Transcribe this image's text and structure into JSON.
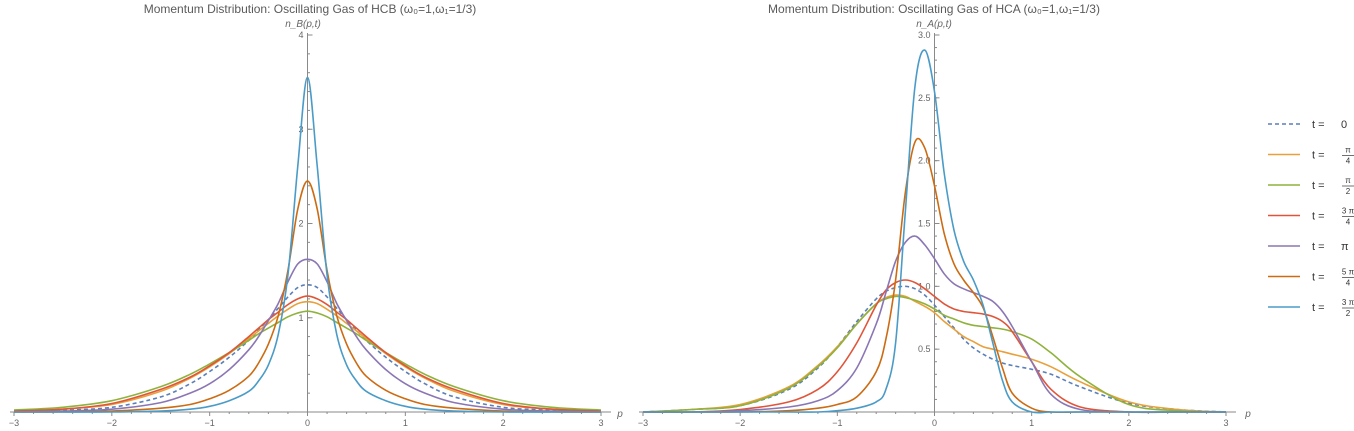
{
  "chart_data": [
    {
      "type": "line",
      "title": "Momentum Distribution: Oscillating Gas of HCB (ω₀=1,ω₁=1/3)",
      "xlabel": "p",
      "ylabel": "n_B(p,t)",
      "xlim": [
        -3,
        3
      ],
      "ylim": [
        0,
        4
      ],
      "xticks": [
        "-3",
        "-2",
        "-1",
        "0",
        "1",
        "2",
        "3"
      ],
      "yticks": [
        "1",
        "2",
        "3",
        "4"
      ],
      "yticks_values": [
        1,
        2,
        3,
        4
      ],
      "grid": false,
      "x": [
        -3,
        -2.5,
        -2,
        -1.5,
        -1.2,
        -1,
        -0.8,
        -0.6,
        -0.5,
        -0.4,
        -0.3,
        -0.2,
        -0.1,
        0,
        0.1,
        0.2,
        0.3,
        0.4,
        0.5,
        0.6,
        0.8,
        1,
        1.2,
        1.5,
        2,
        2.5,
        3
      ],
      "series": [
        {
          "name": "t = 0",
          "values": [
            0.01,
            0.02,
            0.05,
            0.16,
            0.3,
            0.43,
            0.58,
            0.76,
            0.87,
            0.98,
            1.1,
            1.22,
            1.32,
            1.35,
            1.32,
            1.22,
            1.1,
            0.98,
            0.87,
            0.76,
            0.58,
            0.43,
            0.3,
            0.16,
            0.05,
            0.02,
            0.01
          ]
        },
        {
          "name": "t = π/4",
          "values": [
            0.01,
            0.03,
            0.08,
            0.22,
            0.36,
            0.48,
            0.62,
            0.78,
            0.86,
            0.94,
            1.02,
            1.09,
            1.15,
            1.17,
            1.15,
            1.09,
            1.02,
            0.94,
            0.86,
            0.78,
            0.62,
            0.48,
            0.36,
            0.22,
            0.08,
            0.03,
            0.01
          ]
        },
        {
          "name": "t = π/2",
          "values": [
            0.02,
            0.05,
            0.12,
            0.27,
            0.4,
            0.51,
            0.63,
            0.76,
            0.83,
            0.89,
            0.95,
            1.01,
            1.05,
            1.07,
            1.05,
            1.01,
            0.95,
            0.89,
            0.83,
            0.76,
            0.63,
            0.51,
            0.4,
            0.27,
            0.12,
            0.05,
            0.02
          ]
        },
        {
          "name": "t = 3π/4",
          "values": [
            0.01,
            0.03,
            0.09,
            0.24,
            0.37,
            0.49,
            0.63,
            0.8,
            0.89,
            0.98,
            1.06,
            1.14,
            1.2,
            1.23,
            1.2,
            1.14,
            1.06,
            0.98,
            0.89,
            0.8,
            0.63,
            0.49,
            0.37,
            0.24,
            0.09,
            0.03,
            0.01
          ]
        },
        {
          "name": "t = π",
          "values": [
            0.0,
            0.01,
            0.03,
            0.1,
            0.2,
            0.3,
            0.45,
            0.66,
            0.8,
            0.97,
            1.15,
            1.38,
            1.57,
            1.62,
            1.57,
            1.38,
            1.15,
            0.97,
            0.8,
            0.66,
            0.45,
            0.3,
            0.2,
            0.1,
            0.03,
            0.01,
            0.0
          ]
        },
        {
          "name": "t = 5π/4",
          "values": [
            0.0,
            0.0,
            0.01,
            0.04,
            0.08,
            0.14,
            0.23,
            0.38,
            0.52,
            0.72,
            1.02,
            1.5,
            2.15,
            2.45,
            2.15,
            1.5,
            1.02,
            0.72,
            0.52,
            0.38,
            0.23,
            0.14,
            0.08,
            0.04,
            0.01,
            0.0,
            0.0
          ]
        },
        {
          "name": "t = 3π/2",
          "values": [
            0.0,
            0.0,
            0.0,
            0.01,
            0.03,
            0.06,
            0.12,
            0.22,
            0.33,
            0.5,
            0.82,
            1.45,
            2.6,
            3.55,
            2.6,
            1.45,
            0.82,
            0.5,
            0.33,
            0.22,
            0.12,
            0.06,
            0.03,
            0.01,
            0.0,
            0.0,
            0.0
          ]
        }
      ]
    },
    {
      "type": "line",
      "title": "Momentum Distribution: Oscillating Gas of HCA (ω₀=1,ω₁=1/3)",
      "xlabel": "p",
      "ylabel": "n_A(p,t)",
      "xlim": [
        -3,
        3
      ],
      "ylim": [
        0,
        3
      ],
      "xticks": [
        "-3",
        "-2",
        "-1",
        "0",
        "1",
        "2",
        "3"
      ],
      "yticks": [
        "0.5",
        "1.0",
        "1.5",
        "2.0",
        "2.5",
        "3.0"
      ],
      "yticks_values": [
        0.5,
        1.0,
        1.5,
        2.0,
        2.5,
        3.0
      ],
      "grid": false,
      "x": [
        -3,
        -2.5,
        -2,
        -1.5,
        -1.2,
        -1,
        -0.8,
        -0.6,
        -0.5,
        -0.4,
        -0.3,
        -0.2,
        -0.1,
        0,
        0.1,
        0.2,
        0.3,
        0.4,
        0.5,
        0.6,
        0.7,
        0.8,
        1,
        1.2,
        1.5,
        2,
        2.5,
        3
      ],
      "series": [
        {
          "name": "t = 0",
          "values": [
            0.0,
            0.02,
            0.05,
            0.18,
            0.35,
            0.52,
            0.72,
            0.9,
            0.96,
            0.99,
            1.0,
            0.98,
            0.93,
            0.85,
            0.76,
            0.67,
            0.58,
            0.51,
            0.46,
            0.42,
            0.39,
            0.37,
            0.34,
            0.3,
            0.2,
            0.07,
            0.02,
            0.0
          ]
        },
        {
          "name": "t = π/4",
          "values": [
            0.0,
            0.02,
            0.06,
            0.2,
            0.37,
            0.52,
            0.7,
            0.86,
            0.91,
            0.93,
            0.92,
            0.88,
            0.84,
            0.79,
            0.72,
            0.66,
            0.6,
            0.56,
            0.52,
            0.5,
            0.48,
            0.46,
            0.42,
            0.36,
            0.24,
            0.08,
            0.02,
            0.0
          ]
        },
        {
          "name": "t = π/2",
          "values": [
            0.0,
            0.02,
            0.05,
            0.19,
            0.36,
            0.51,
            0.7,
            0.86,
            0.9,
            0.92,
            0.91,
            0.89,
            0.86,
            0.82,
            0.77,
            0.74,
            0.71,
            0.69,
            0.68,
            0.67,
            0.66,
            0.64,
            0.58,
            0.47,
            0.28,
            0.06,
            0.01,
            0.0
          ]
        },
        {
          "name": "t = 3π/4",
          "values": [
            0.0,
            0.0,
            0.02,
            0.08,
            0.18,
            0.32,
            0.55,
            0.85,
            0.97,
            1.03,
            1.05,
            1.03,
            0.98,
            0.92,
            0.86,
            0.82,
            0.8,
            0.79,
            0.78,
            0.76,
            0.72,
            0.64,
            0.4,
            0.18,
            0.04,
            0.0,
            0.0,
            0.0
          ]
        },
        {
          "name": "t = π",
          "values": [
            0.0,
            0.0,
            0.01,
            0.04,
            0.09,
            0.17,
            0.35,
            0.7,
            0.95,
            1.2,
            1.35,
            1.4,
            1.33,
            1.22,
            1.1,
            1.02,
            0.98,
            0.95,
            0.92,
            0.88,
            0.8,
            0.68,
            0.4,
            0.14,
            0.02,
            0.0,
            0.0,
            0.0
          ]
        },
        {
          "name": "t = 5π/4",
          "values": [
            0.0,
            0.0,
            0.0,
            0.01,
            0.03,
            0.06,
            0.12,
            0.32,
            0.58,
            1.05,
            1.75,
            2.15,
            2.1,
            1.8,
            1.42,
            1.18,
            1.05,
            0.95,
            0.83,
            0.6,
            0.35,
            0.15,
            0.03,
            0.0,
            0.0,
            0.0,
            0.0,
            0.0
          ]
        },
        {
          "name": "t = 3π/2",
          "values": [
            0.0,
            0.0,
            0.0,
            0.0,
            0.0,
            0.01,
            0.03,
            0.08,
            0.18,
            0.55,
            1.6,
            2.6,
            2.88,
            2.55,
            1.9,
            1.45,
            1.2,
            1.05,
            0.85,
            0.55,
            0.25,
            0.08,
            0.0,
            0.0,
            0.0,
            0.0,
            0.0,
            0.0
          ]
        }
      ]
    }
  ],
  "legend": {
    "placement": "right",
    "items": [
      {
        "prefix": "t = ",
        "num": "0",
        "den": "",
        "color": "#5b7fb8",
        "dashed": true
      },
      {
        "prefix": "t = ",
        "num": "π",
        "den": "4",
        "color": "#e8a03a",
        "dashed": false
      },
      {
        "prefix": "t = ",
        "num": "π",
        "den": "2",
        "color": "#8fb23c",
        "dashed": false
      },
      {
        "prefix": "t = ",
        "num": "3 π",
        "den": "4",
        "color": "#e0553a",
        "dashed": false
      },
      {
        "prefix": "t = ",
        "num": "π",
        "den": "",
        "color": "#8a76b4",
        "dashed": false
      },
      {
        "prefix": "t = ",
        "num": "5 π",
        "den": "4",
        "color": "#cc6b12",
        "dashed": false
      },
      {
        "prefix": "t = ",
        "num": "3 π",
        "den": "2",
        "color": "#4a9bc7",
        "dashed": false
      }
    ]
  }
}
